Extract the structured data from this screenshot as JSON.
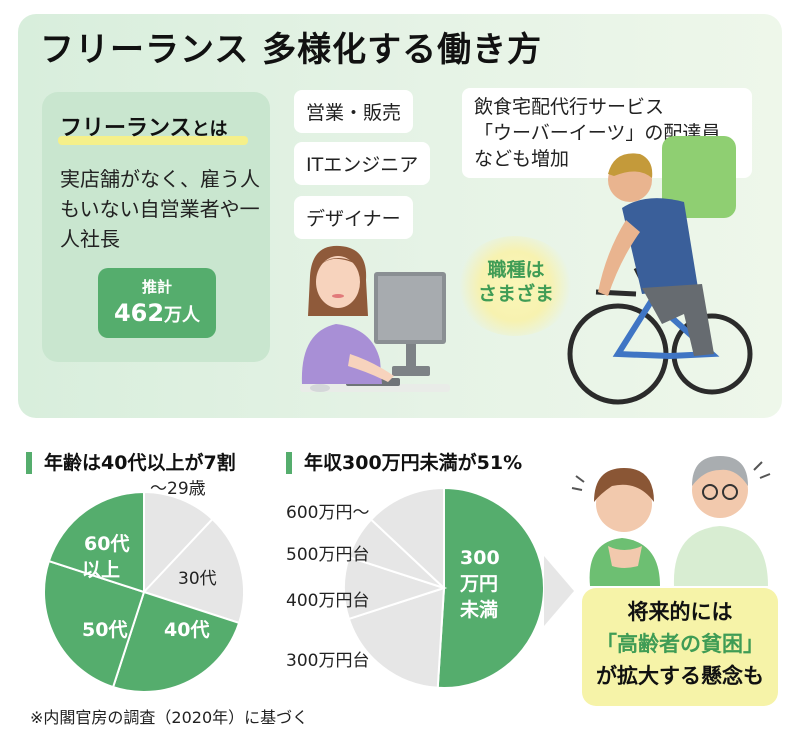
{
  "title": "フリーランス 多様化する働き方",
  "definition": {
    "heading_main": "フリーランス",
    "heading_suffix": "とは",
    "text": "実店舗がなく、雇う人もいない自営業者や一人社長",
    "estimate_label": "推計",
    "estimate_number": "462",
    "estimate_unit": "万人"
  },
  "jobs": [
    "営業・販売",
    "ITエンジニア",
    "デザイナー"
  ],
  "uber_note": [
    "飲食宅配代行サービス",
    "「ウーバーイーツ」の配達員",
    "なども増加"
  ],
  "glow_text": [
    "職種は",
    "さまざま"
  ],
  "colors": {
    "green": "#55ad6d",
    "light_green": "#c9e6cf",
    "gray_slice": "#e6e6e6",
    "yellow": "#f6f3a8"
  },
  "chart_data": [
    {
      "type": "pie",
      "title": "年齢は40代以上が7割",
      "slices": [
        {
          "label": "〜29歳",
          "value": 12,
          "color": "#e6e6e6"
        },
        {
          "label": "30代",
          "value": 18,
          "color": "#e6e6e6"
        },
        {
          "label": "40代",
          "value": 25,
          "color": "#55ad6d"
        },
        {
          "label": "50代",
          "value": 25,
          "color": "#55ad6d"
        },
        {
          "label": "60代以上",
          "value": 20,
          "color": "#55ad6d"
        }
      ]
    },
    {
      "type": "pie",
      "title": "年収300万円未満が51%",
      "slices": [
        {
          "label": "300万円未満",
          "value": 51,
          "color": "#55ad6d"
        },
        {
          "label": "300万円台",
          "value": 19,
          "color": "#e6e6e6"
        },
        {
          "label": "400万円台",
          "value": 10,
          "color": "#e6e6e6"
        },
        {
          "label": "500万円台",
          "value": 7,
          "color": "#e6e6e6"
        },
        {
          "label": "600万円〜",
          "value": 13,
          "color": "#e6e6e6"
        }
      ]
    }
  ],
  "concern": {
    "line1": "将来的には",
    "line2": "「高齢者の貧困」",
    "line3": "が拡大する懸念も"
  },
  "footnote": "※内閣官房の調査（2020年）に基づく"
}
